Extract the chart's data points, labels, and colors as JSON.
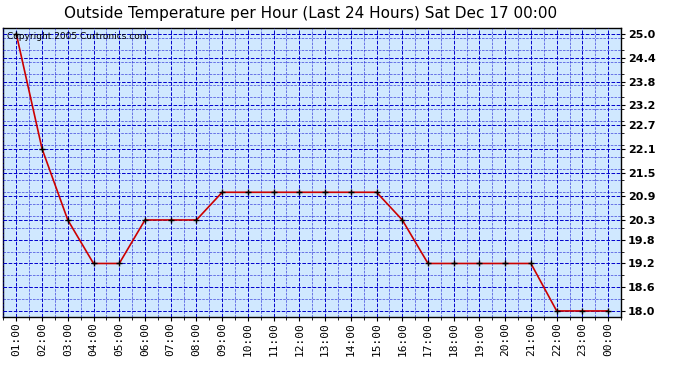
{
  "title": "Outside Temperature per Hour (Last 24 Hours) Sat Dec 17 00:00",
  "copyright": "Copyright 2005 Curtronics.com",
  "x_labels": [
    "01:00",
    "02:00",
    "03:00",
    "04:00",
    "05:00",
    "06:00",
    "07:00",
    "08:00",
    "09:00",
    "10:00",
    "11:00",
    "12:00",
    "13:00",
    "14:00",
    "15:00",
    "16:00",
    "17:00",
    "18:00",
    "19:00",
    "20:00",
    "21:00",
    "22:00",
    "23:00",
    "00:00"
  ],
  "y_values": [
    25.0,
    22.1,
    20.3,
    19.2,
    19.2,
    20.3,
    20.3,
    20.3,
    21.0,
    21.0,
    21.0,
    21.0,
    21.0,
    21.0,
    21.0,
    20.3,
    19.2,
    19.2,
    19.2,
    19.2,
    19.2,
    18.0,
    18.0,
    18.0
  ],
  "y_ticks": [
    18.0,
    18.6,
    19.2,
    19.8,
    20.3,
    20.9,
    21.5,
    22.1,
    22.7,
    23.2,
    23.8,
    24.4,
    25.0
  ],
  "ylim": [
    17.85,
    25.15
  ],
  "line_color": "#cc0000",
  "marker_color": "#000000",
  "grid_color": "#0000cc",
  "plot_bg": "#d0e8ff",
  "outer_bg": "#ffffff",
  "title_color": "#000000",
  "title_fontsize": 11,
  "copyright_fontsize": 6.5,
  "tick_fontsize": 8,
  "copyright_color": "#000000"
}
